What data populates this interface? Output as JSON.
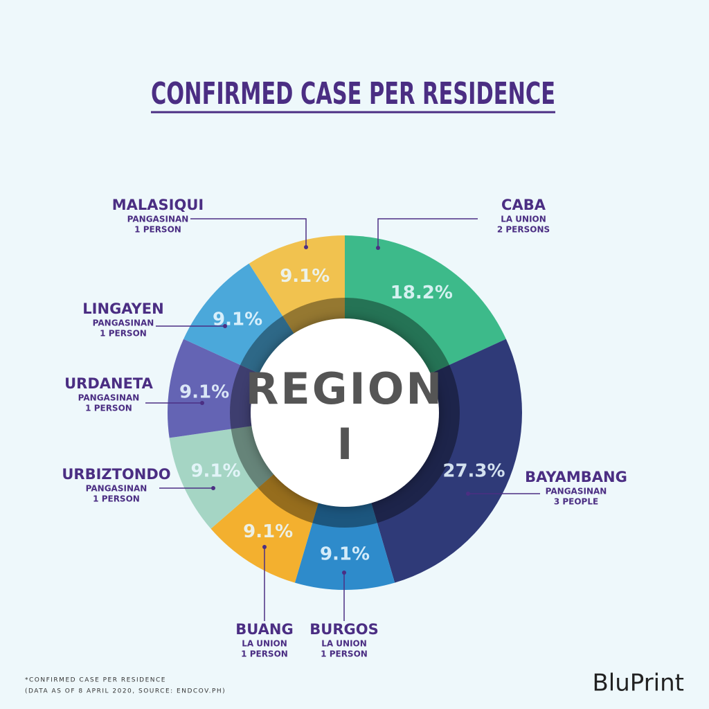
{
  "chart_data": {
    "type": "donut",
    "title": "CONFIRMED CASE PER RESIDENCE",
    "categories": [
      "CABA",
      "BAYAMBANG",
      "BURGOS",
      "BUANG",
      "URBIZTONDO",
      "URDANETA",
      "LINGAYEN",
      "MALASIQUI"
    ],
    "provinces": [
      "LA UNION",
      "PANGASINAN",
      "LA UNION",
      "LA UNION",
      "PANGASINAN",
      "PANGASINAN",
      "PANGASINAN",
      "PANGASINAN"
    ],
    "counts": [
      "2 PERSONS",
      "3 PEOPLE",
      "1 PERSON",
      "1 PERSON",
      "1 PERSON",
      "1 PERSON",
      "1 PERSON",
      "1 PERSON"
    ],
    "values": [
      18.2,
      27.3,
      9.1,
      9.1,
      9.1,
      9.1,
      9.1,
      9.1
    ],
    "value_labels": [
      "18.2%",
      "27.3%",
      "9.1%",
      "9.1%",
      "9.1%",
      "9.1%",
      "9.1%",
      "9.1%"
    ],
    "colors": [
      "#3dba8a",
      "#2f3a78",
      "#2e8bcb",
      "#f3b02f",
      "#a5d5c4",
      "#6464b4",
      "#4ba8da",
      "#f1c24f"
    ],
    "center_label": [
      "REGION",
      "I"
    ]
  },
  "footnote": [
    "*CONFIRMED CASE PER RESIDENCE",
    "(DATA AS OF 8 APRIL 2020, SOURCE: ENDCOV.PH)"
  ],
  "logo": "BluPrint"
}
